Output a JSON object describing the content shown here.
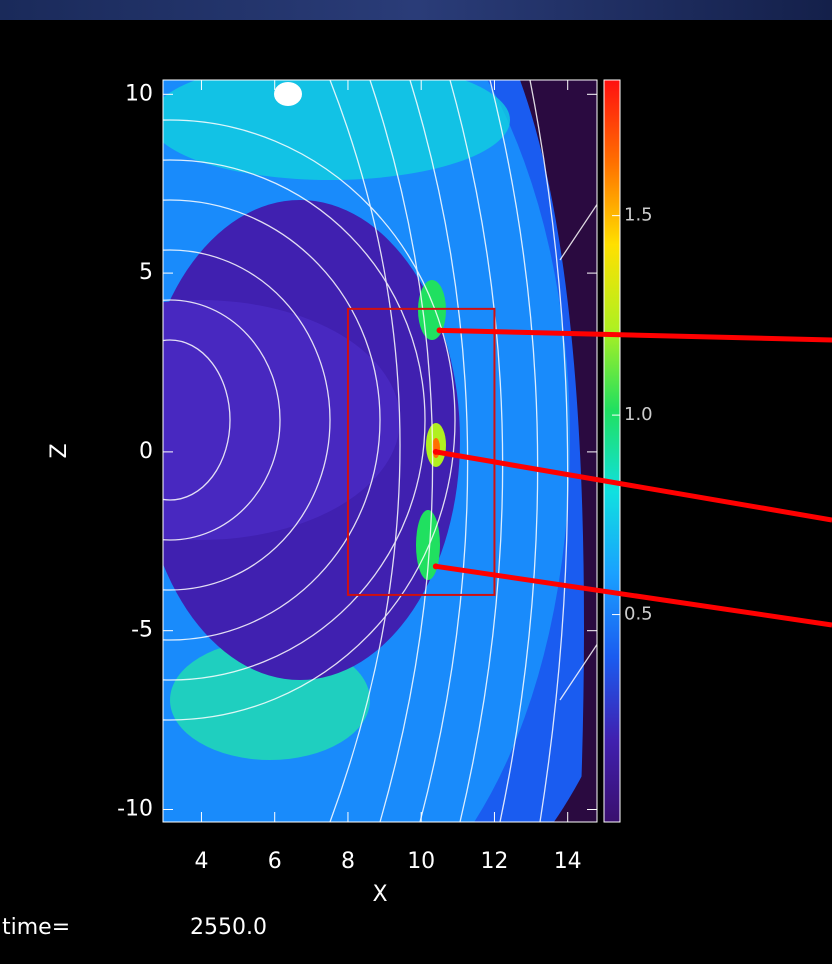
{
  "chart_data": {
    "type": "contour",
    "xlabel": "X",
    "ylabel": "Z",
    "xlim": [
      2.95,
      14.8
    ],
    "xticks": [
      4,
      6,
      8,
      10,
      12,
      14
    ],
    "ylim": [
      -10.35,
      10.4
    ],
    "yticks": [
      10,
      5,
      0,
      -5,
      -10
    ],
    "colorbar": {
      "lim": [
        -0.02,
        1.84
      ],
      "ticks": [
        0.5,
        {
          "value": 1.0,
          "label": "1.0"
        },
        1.5
      ],
      "colors": [
        "#3a0f6e",
        "#4020b0",
        "#1a5cf0",
        "#1aa0ff",
        "#10e0e0",
        "#20e060",
        "#b0f020",
        "#ffe000",
        "#ff7000",
        "#ff1010"
      ]
    },
    "highlight_box": {
      "x": [
        8,
        12
      ],
      "z": [
        -4,
        4
      ],
      "color": "#d01010"
    },
    "callouts": {
      "x": [
        10.5,
        10.4,
        10.4
      ],
      "z": [
        3.4,
        0,
        -3.2
      ],
      "color": "#ff0000"
    },
    "time_label": "time=",
    "time": "2550.0"
  }
}
